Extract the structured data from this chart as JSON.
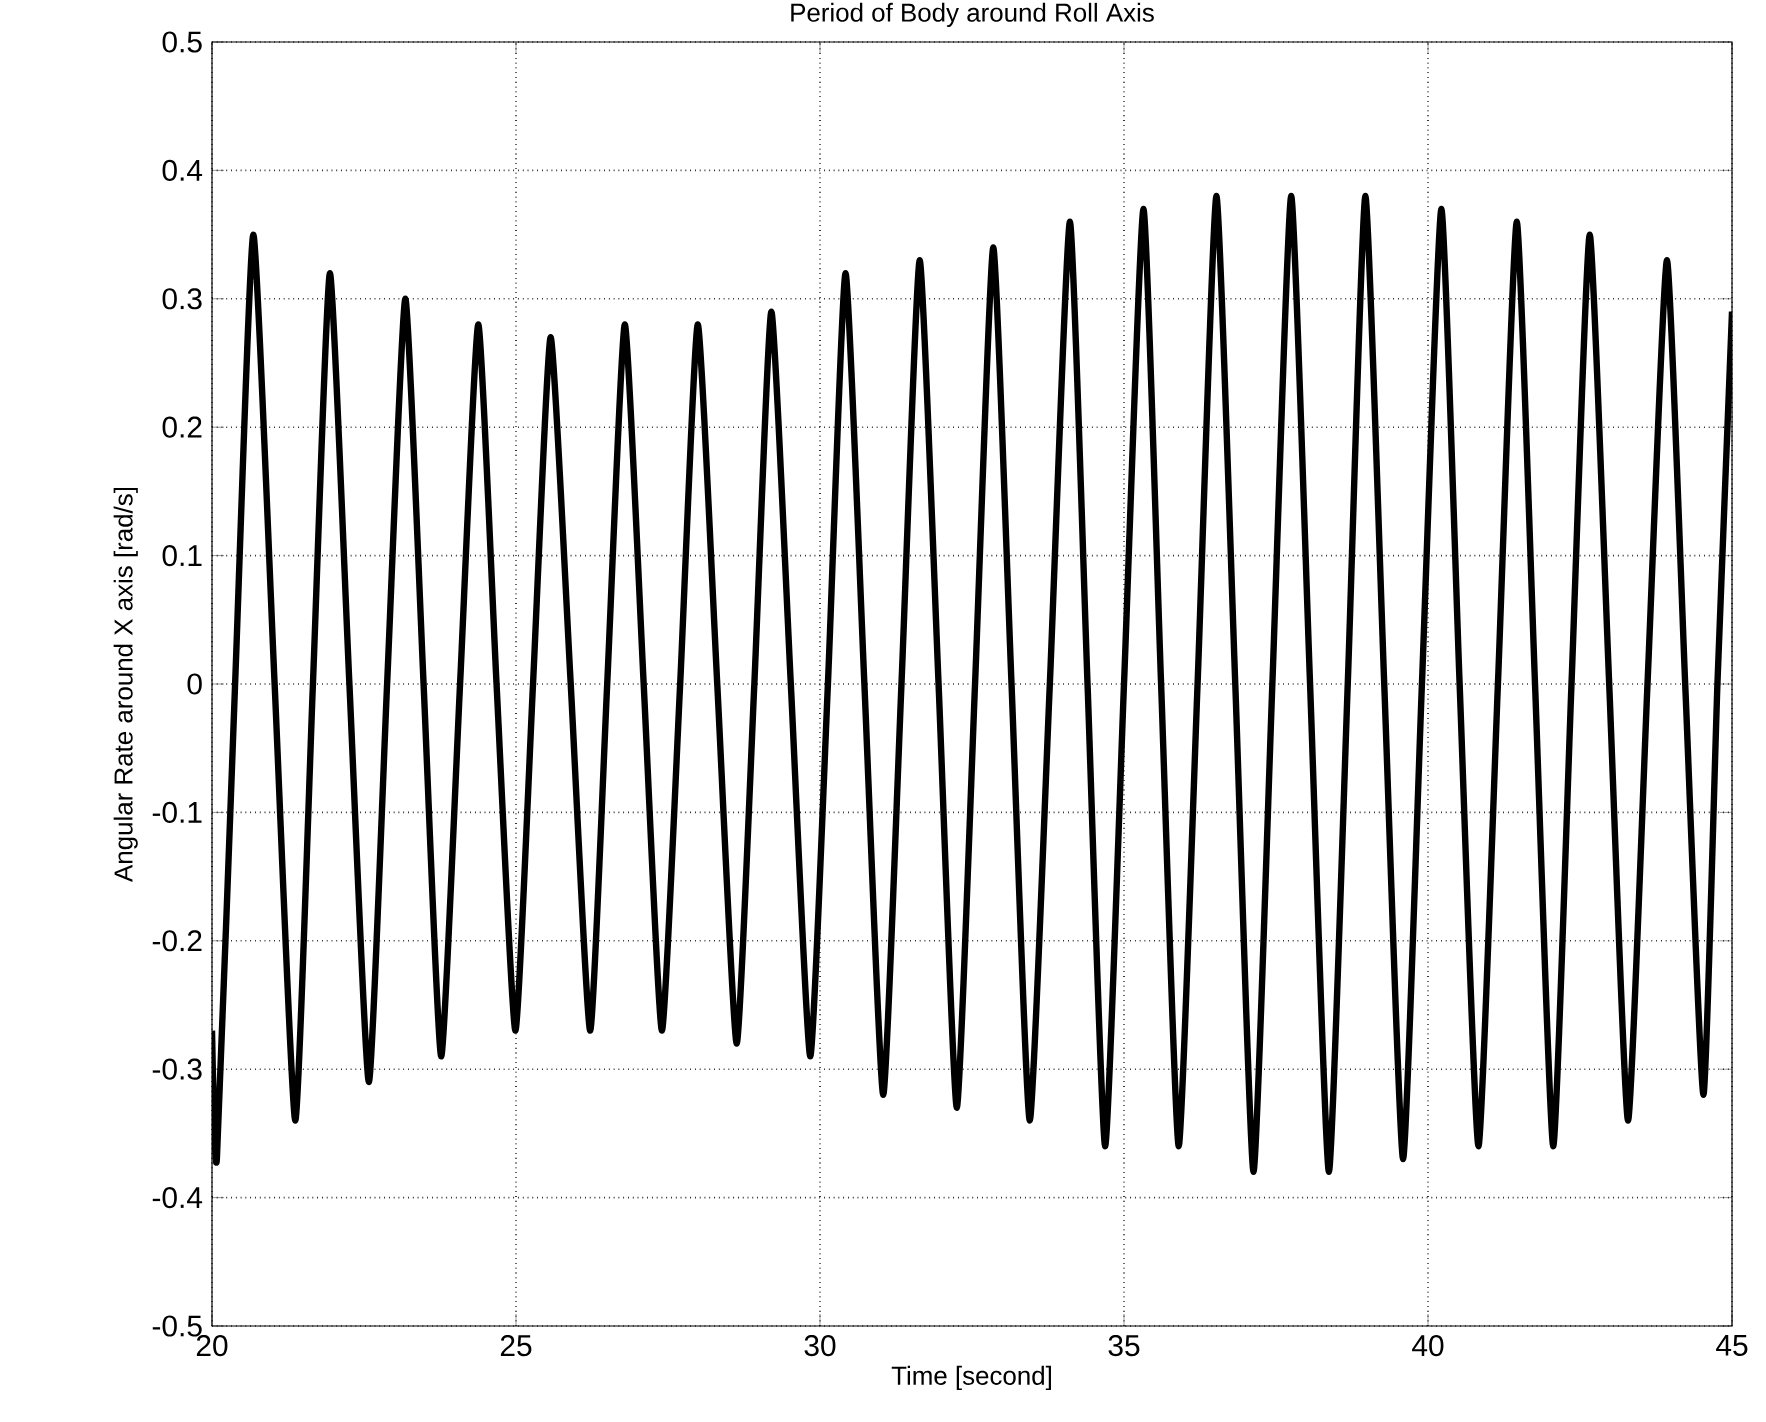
{
  "chart_data": {
    "type": "line",
    "title": "Period of Body around Roll Axis",
    "xlabel": "Time [second]",
    "ylabel": "Angular Rate around X axis [rad/s]",
    "color": "#000000",
    "grid": true,
    "xlim": [
      20,
      45
    ],
    "ylim": [
      -0.5,
      0.5
    ],
    "xticks": [
      20,
      25,
      30,
      35,
      40,
      45
    ],
    "yticks": [
      -0.5,
      -0.4,
      -0.3,
      -0.2,
      -0.1,
      0,
      0.1,
      0.2,
      0.3,
      0.4,
      0.5
    ],
    "x": [
      20,
      20.08,
      20.38,
      20.68,
      21.03,
      21.37,
      21.66,
      21.94,
      22.26,
      22.58,
      22.88,
      23.18,
      23.48,
      23.77,
      24.08,
      24.38,
      24.68,
      24.99,
      25.28,
      25.57,
      25.9,
      26.22,
      26.5,
      26.79,
      27.1,
      27.4,
      27.7,
      27.99,
      28.31,
      28.63,
      28.92,
      29.2,
      29.52,
      29.84,
      30.13,
      30.42,
      30.73,
      31.04,
      31.34,
      31.64,
      31.95,
      32.25,
      32.55,
      32.85,
      33.15,
      33.45,
      33.78,
      34.11,
      34.4,
      34.69,
      35.0,
      35.32,
      35.61,
      35.9,
      36.21,
      36.52,
      36.83,
      37.13,
      37.44,
      37.75,
      38.06,
      38.37,
      38.68,
      38.97,
      39.28,
      39.59,
      39.9,
      40.22,
      40.52,
      40.83,
      41.15,
      41.46,
      41.76,
      42.06,
      42.36,
      42.66,
      42.98,
      43.29,
      43.61,
      43.93,
      44.23,
      44.53,
      44.76,
      45
    ],
    "values": [
      -0.27,
      -0.37,
      0,
      0.35,
      0,
      -0.34,
      0,
      0.32,
      0,
      -0.31,
      0,
      0.3,
      0,
      -0.29,
      0,
      0.28,
      0,
      -0.27,
      0,
      0.27,
      0,
      -0.27,
      0,
      0.28,
      0,
      -0.27,
      0,
      0.28,
      0,
      -0.28,
      0,
      0.29,
      0,
      -0.29,
      0,
      0.32,
      0,
      -0.32,
      0,
      0.33,
      0,
      -0.33,
      0,
      0.34,
      0,
      -0.34,
      0,
      0.36,
      0,
      -0.36,
      0,
      0.37,
      0,
      -0.36,
      0,
      0.38,
      0,
      -0.38,
      0,
      0.38,
      0,
      -0.38,
      0,
      0.38,
      0,
      -0.37,
      0,
      0.37,
      0,
      -0.36,
      0,
      0.36,
      0,
      -0.36,
      0,
      0.35,
      0,
      -0.34,
      0,
      0.33,
      0,
      -0.32,
      0,
      0.29
    ]
  }
}
